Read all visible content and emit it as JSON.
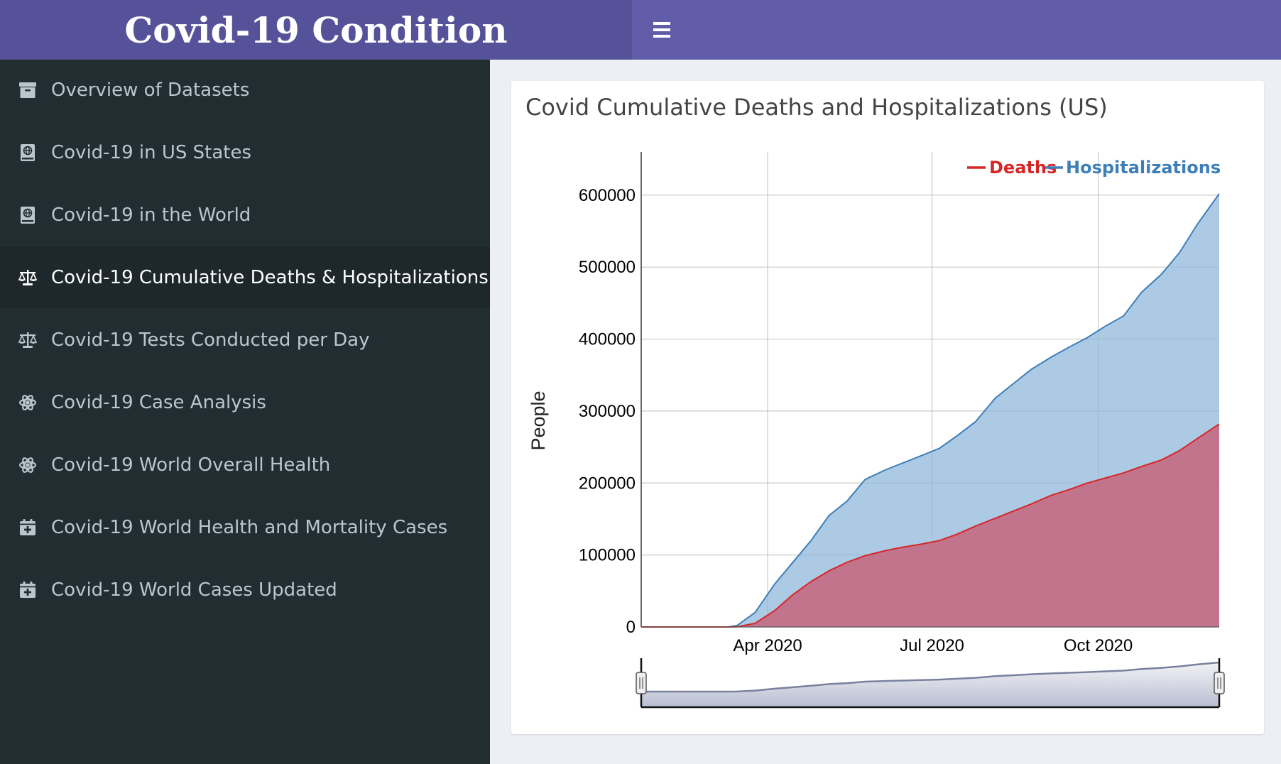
{
  "header": {
    "title": "Covid-19 Condition",
    "menu_icon": "hamburger-icon"
  },
  "sidebar": {
    "items": [
      {
        "label": "Overview of Datasets",
        "icon": "archive-icon"
      },
      {
        "label": "Covid-19 in US States",
        "icon": "atlas-book-icon"
      },
      {
        "label": "Covid-19 in the World",
        "icon": "atlas-book-icon"
      },
      {
        "label": "Covid-19 Cumulative Deaths & Hospitalizations",
        "icon": "balance-scale-icon",
        "active": true
      },
      {
        "label": "Covid-19 Tests Conducted per Day",
        "icon": "balance-scale-icon"
      },
      {
        "label": "Covid-19 Case Analysis",
        "icon": "atom-icon"
      },
      {
        "label": "Covid-19 World Overall Health",
        "icon": "atom-icon"
      },
      {
        "label": "Covid-19 World Health and Mortality Cases",
        "icon": "calendar-plus-icon"
      },
      {
        "label": "Covid-19 World Cases Updated",
        "icon": "calendar-plus-icon"
      }
    ]
  },
  "main": {
    "box_title": "Covid Cumulative Deaths and Hospitalizations (US)"
  },
  "colors": {
    "header": "#605ca8",
    "logo": "#555299",
    "sidebar": "#222d32",
    "deaths": "#d62728",
    "hospitalizations": "#3e7fb8"
  },
  "chart_data": {
    "type": "area",
    "title": "",
    "xlabel": "",
    "ylabel": "People",
    "x_tick_labels": [
      "Apr 2020",
      "Jul 2020",
      "Oct 2020"
    ],
    "y_tick_labels": [
      "0",
      "100000",
      "200000",
      "300000",
      "400000",
      "500000",
      "600000"
    ],
    "ylim": [
      0,
      660000
    ],
    "xlim": [
      "2020-01-22",
      "2020-12-07"
    ],
    "grid": true,
    "legend_position": "top-right",
    "range_selector": true,
    "x": [
      "2020-01-22",
      "2020-03-10",
      "2020-03-15",
      "2020-03-25",
      "2020-04-05",
      "2020-04-15",
      "2020-04-25",
      "2020-05-05",
      "2020-05-15",
      "2020-05-25",
      "2020-06-05",
      "2020-06-15",
      "2020-06-25",
      "2020-07-05",
      "2020-07-15",
      "2020-07-25",
      "2020-08-05",
      "2020-08-15",
      "2020-08-25",
      "2020-09-05",
      "2020-09-15",
      "2020-09-25",
      "2020-10-05",
      "2020-10-15",
      "2020-10-25",
      "2020-11-05",
      "2020-11-15",
      "2020-11-25",
      "2020-12-07"
    ],
    "series": [
      {
        "name": "Deaths",
        "values": [
          0,
          0,
          200,
          5000,
          23000,
          45000,
          63000,
          78000,
          90000,
          99000,
          106000,
          111000,
          115000,
          120000,
          129000,
          140000,
          151000,
          161000,
          171000,
          183000,
          191000,
          200000,
          207000,
          214000,
          223000,
          232000,
          245000,
          262000,
          282000
        ]
      },
      {
        "name": "Hospitalizations",
        "values": [
          0,
          0,
          2000,
          20000,
          60000,
          90000,
          120000,
          155000,
          175000,
          205000,
          218000,
          228000,
          238000,
          248000,
          266000,
          285000,
          318000,
          338000,
          358000,
          375000,
          389000,
          402000,
          418000,
          432000,
          465000,
          490000,
          520000,
          560000,
          602000
        ]
      }
    ]
  }
}
